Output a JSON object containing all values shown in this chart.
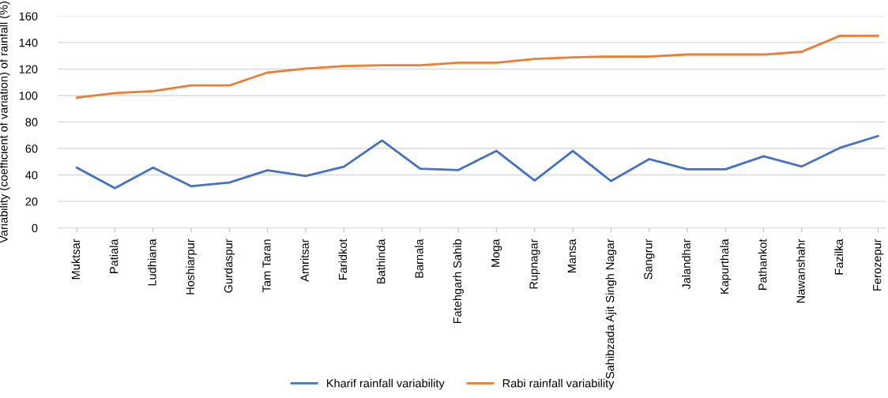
{
  "chart_data": {
    "type": "line",
    "ylabel": "Variability (coefficient of variation) of rainfall (%)",
    "categories": [
      "Muktsar",
      "Patiala",
      "Ludhiana",
      "Hoshiarpur",
      "Gurdaspur",
      "Tam Taran",
      "Amritsar",
      "Faridkot",
      "Bathinda",
      "Barnala",
      "Fatehgarh Sahib",
      "Moga",
      "Rupnagar",
      "Mansa",
      "Sahibzada Ajit Singh Nagar",
      "Sangrur",
      "Jalandhar",
      "Kapurthala",
      "Pathankot",
      "Nawanshahr",
      "Fazilka",
      "Ferozepur"
    ],
    "series": [
      {
        "name": "Kharif rainfall variability",
        "color": "#4472c4",
        "values": [
          45.6,
          30,
          45.6,
          31.5,
          34.3,
          43.5,
          39.2,
          46.2,
          66,
          44.7,
          43.7,
          58.2,
          35.8,
          58.2,
          35.4,
          52,
          44.3,
          44.3,
          54.1,
          46.4,
          60.5,
          69.4
        ]
      },
      {
        "name": "Rabi rainfall variability",
        "color": "#ed7d31",
        "values": [
          98.4,
          101.8,
          103.3,
          107.6,
          107.6,
          117.4,
          120.4,
          122.3,
          122.9,
          122.9,
          124.8,
          124.8,
          127.6,
          128.9,
          129.5,
          129.5,
          131,
          131,
          131,
          133.1,
          145.1,
          145.1
        ]
      }
    ],
    "ylim": [
      0,
      160
    ],
    "yticks": [
      0,
      20,
      40,
      60,
      80,
      100,
      120,
      140,
      160
    ],
    "grid": "y",
    "legend": "bottom",
    "line_style": "solid",
    "marker": "none"
  }
}
